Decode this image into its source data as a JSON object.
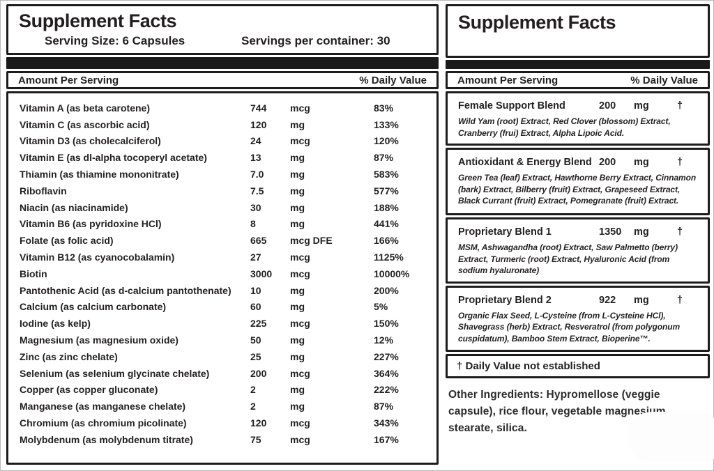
{
  "left_panel": {
    "title": "Supplement Facts",
    "serving_size": "Serving Size: 6 Capsules",
    "servings_per_container": "Servings per container: 30",
    "amount_header": "Amount Per Serving",
    "daily_value_header": "% Daily Value",
    "rows": [
      {
        "name": "Vitamin A (as beta carotene)",
        "amount": "744",
        "unit": "mcg",
        "dv": "83%"
      },
      {
        "name": "Vitamin C (as ascorbic acid)",
        "amount": "120",
        "unit": "mg",
        "dv": "133%"
      },
      {
        "name": "Vitamin D3 (as cholecalciferol)",
        "amount": "24",
        "unit": "mcg",
        "dv": "120%"
      },
      {
        "name": "Vitamin E (as dl-alpha tocoperyl acetate)",
        "amount": "13",
        "unit": "mg",
        "dv": "87%"
      },
      {
        "name": "Thiamin (as thiamine mononitrate)",
        "amount": "7.0",
        "unit": "mg",
        "dv": "583%"
      },
      {
        "name": "Riboflavin",
        "amount": "7.5",
        "unit": "mg",
        "dv": "577%"
      },
      {
        "name": "Niacin (as niacinamide)",
        "amount": "30",
        "unit": "mg",
        "dv": "188%"
      },
      {
        "name": "Vitamin B6 (as pyridoxine HCl)",
        "amount": "8",
        "unit": "mg",
        "dv": "441%"
      },
      {
        "name": "Folate (as folic acid)",
        "amount": "665",
        "unit": "mcg DFE",
        "dv": "166%"
      },
      {
        "name": "Vitamin B12 (as cyanocobalamin)",
        "amount": "27",
        "unit": "mcg",
        "dv": "1125%"
      },
      {
        "name": "Biotin",
        "amount": "3000",
        "unit": "mcg",
        "dv": "10000%"
      },
      {
        "name": "Pantothenic Acid (as d-calcium pantothenate)",
        "amount": "10",
        "unit": "mg",
        "dv": "200%"
      },
      {
        "name": "Calcium (as calcium carbonate)",
        "amount": "60",
        "unit": "mg",
        "dv": "5%"
      },
      {
        "name": "Iodine (as kelp)",
        "amount": "225",
        "unit": "mcg",
        "dv": "150%"
      },
      {
        "name": "Magnesium (as magnesium oxide)",
        "amount": "50",
        "unit": "mg",
        "dv": "12%"
      },
      {
        "name": "Zinc (as zinc chelate)",
        "amount": "25",
        "unit": "mg",
        "dv": "227%"
      },
      {
        "name": "Selenium (as selenium glycinate chelate)",
        "amount": "200",
        "unit": "mcg",
        "dv": "364%"
      },
      {
        "name": "Copper (as copper gluconate)",
        "amount": "2",
        "unit": "mg",
        "dv": "222%"
      },
      {
        "name": "Manganese (as manganese chelate)",
        "amount": "2",
        "unit": "mg",
        "dv": "87%"
      },
      {
        "name": "Chromium (as chromium picolinate)",
        "amount": "120",
        "unit": "mcg",
        "dv": "343%"
      },
      {
        "name": "Molybdenum (as molybdenum titrate)",
        "amount": "75",
        "unit": "mcg",
        "dv": "167%"
      }
    ]
  },
  "right_panel": {
    "title": "Supplement Facts",
    "amount_header": "Amount Per Serving",
    "daily_value_header": "% Daily Value",
    "blends": [
      {
        "name": "Female Support Blend",
        "amount": "200",
        "unit": "mg",
        "dv": "†",
        "description": "Wild Yam (root) Extract, Red Clover (blossom) Extract, Cranberry (frui) Extract, Alpha Lipoic Acid."
      },
      {
        "name": "Antioxidant & Energy Blend",
        "amount": "200",
        "unit": "mg",
        "dv": "†",
        "description": "Green Tea (leaf) Extract, Hawthorne Berry Extract, Cinnamon (bark) Extract, Bilberry (fruit) Extract, Grapeseed Extract, Black Currant (fruit) Extract, Pomegranate (fruit) Extract."
      },
      {
        "name": "Proprietary Blend 1",
        "amount": "1350",
        "unit": "mg",
        "dv": "†",
        "description": "MSM, Ashwagandha (root) Extract, Saw Palmetto (berry) Extract, Turmeric (root) Extract, Hyaluronic Acid (from sodium hyaluronate)"
      },
      {
        "name": "Proprietary Blend 2",
        "amount": "922",
        "unit": "mg",
        "dv": "†",
        "description": "Organic Flax Seed, L-Cysteine (from L-Cysteine HCl), Shavegrass (herb) Extract, Resveratrol (from polygonum cuspidatum), Bamboo Stem Extract, Bioperine™."
      }
    ],
    "footnote": "† Daily Value not established",
    "other_ingredients": "Other Ingredients: Hypromellose (veggie capsule), rice flour, vegetable magnesium stearate, silica."
  },
  "colors": {
    "text": "#231f20",
    "border": "#1c1c1c",
    "bar": "#1a1a1a",
    "background": "#ffffff"
  }
}
